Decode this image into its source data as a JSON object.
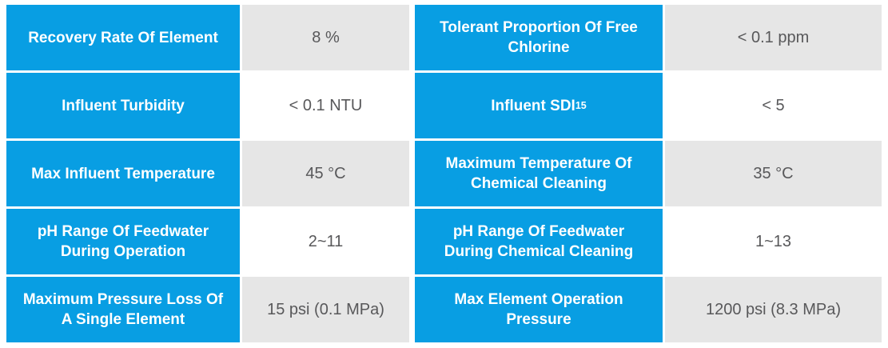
{
  "table": {
    "colors": {
      "header_blue": "#089ee3",
      "value_gray": "#e6e6e6",
      "value_text": "#58585a",
      "label_text": "#ffffff"
    },
    "rows": [
      {
        "left": {
          "label": "Recovery Rate Of Element",
          "value": "8 %"
        },
        "right": {
          "label": "Tolerant Proportion Of Free\nChlorine",
          "value": "< 0.1 ppm"
        }
      },
      {
        "left": {
          "label": "Influent Turbidity",
          "value": "< 0.1 NTU"
        },
        "right": {
          "label": "Influent SDI",
          "label_sub": "15",
          "value": "< 5"
        }
      },
      {
        "left": {
          "label": "Max Influent Temperature",
          "value": "45 °C"
        },
        "right": {
          "label": "Maximum Temperature Of\nChemical Cleaning",
          "value": "35 °C"
        }
      },
      {
        "left": {
          "label": "pH Range Of Feedwater\nDuring Operation",
          "value": "2~11"
        },
        "right": {
          "label": "pH Range Of Feedwater\nDuring Chemical Cleaning",
          "value": "1~13"
        }
      },
      {
        "left": {
          "label": "Maximum Pressure Loss Of\nA Single Element",
          "value": "15 psi (0.1 MPa)"
        },
        "right": {
          "label": "Max Element Operation\nPressure",
          "value": "1200 psi (8.3 MPa)"
        }
      }
    ]
  }
}
